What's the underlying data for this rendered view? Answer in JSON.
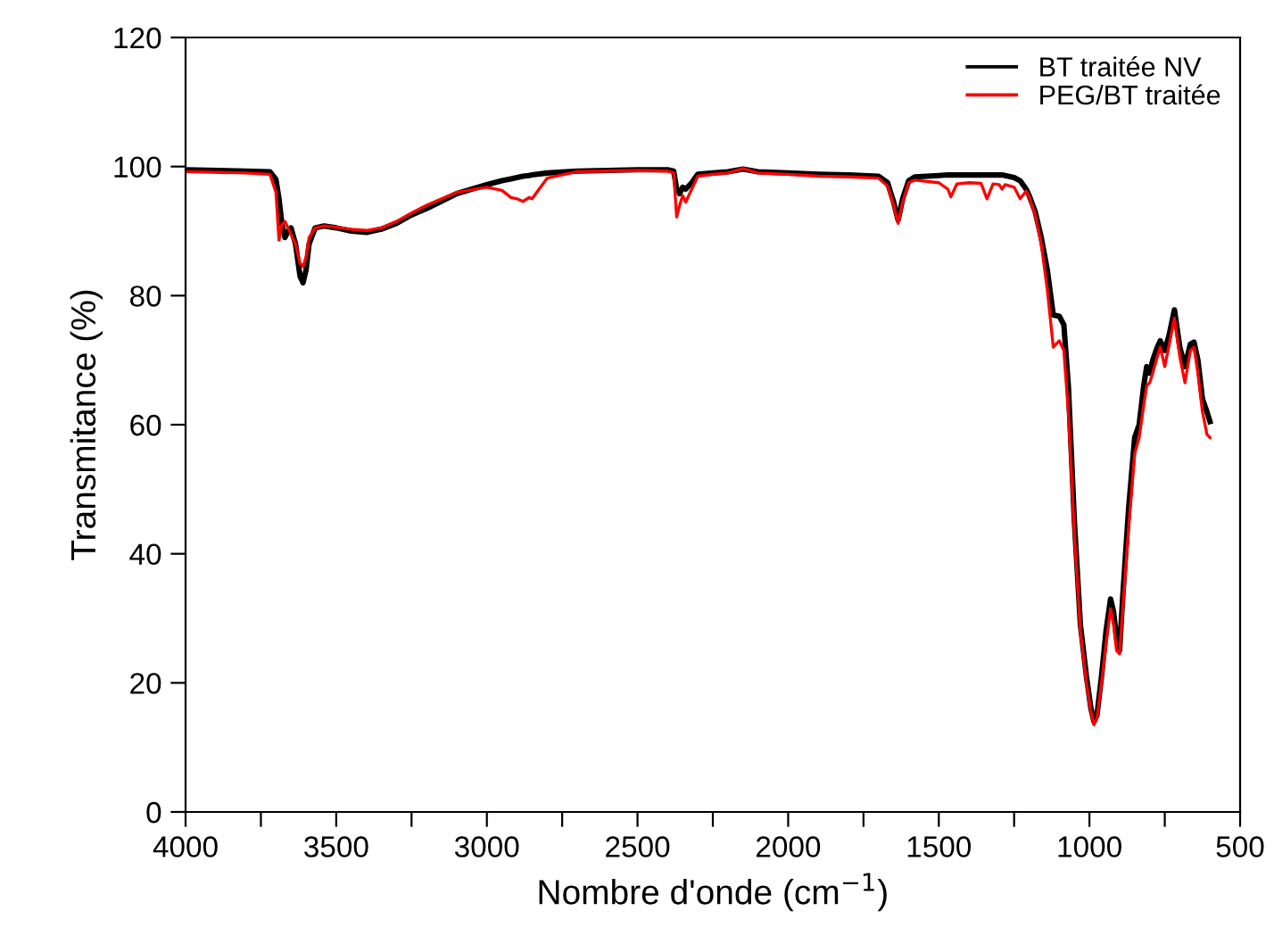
{
  "chart_data": {
    "type": "line",
    "xlabel": "Nombre d'onde (cm$^{−1}$)",
    "ylabel": "Transmitance (%)",
    "x": [
      4000,
      3800,
      3720,
      3700,
      3690,
      3680,
      3670,
      3660,
      3650,
      3635,
      3620,
      3610,
      3600,
      3590,
      3570,
      3540,
      3500,
      3450,
      3400,
      3350,
      3300,
      3250,
      3200,
      3100,
      3000,
      2950,
      2920,
      2900,
      2880,
      2860,
      2850,
      2800,
      2700,
      2600,
      2500,
      2400,
      2380,
      2370,
      2360,
      2350,
      2340,
      2320,
      2300,
      2250,
      2200,
      2150,
      2100,
      2000,
      1900,
      1800,
      1700,
      1670,
      1650,
      1635,
      1620,
      1600,
      1580,
      1500,
      1470,
      1460,
      1440,
      1400,
      1360,
      1340,
      1320,
      1300,
      1290,
      1280,
      1250,
      1230,
      1210,
      1200,
      1180,
      1160,
      1140,
      1120,
      1100,
      1085,
      1070,
      1050,
      1030,
      1010,
      995,
      985,
      975,
      960,
      945,
      930,
      920,
      910,
      900,
      890,
      870,
      850,
      835,
      820,
      810,
      800,
      790,
      775,
      765,
      750,
      735,
      718,
      700,
      683,
      665,
      653,
      640,
      625,
      610,
      600
    ],
    "series": [
      {
        "name": "BT traitée NV",
        "color": "#000000",
        "values": [
          99.5,
          99.3,
          99.2,
          98,
          95,
          91,
          89,
          90,
          90.5,
          88,
          83,
          82,
          84,
          88,
          90.5,
          90.8,
          90.5,
          90,
          89.8,
          90.3,
          91.2,
          92.5,
          93.5,
          95.8,
          97.2,
          97.8,
          98.1,
          98.3,
          98.5,
          98.6,
          98.7,
          99,
          99.3,
          99.4,
          99.5,
          99.5,
          99.3,
          96.5,
          95.8,
          96.8,
          96.5,
          97.5,
          98.8,
          99,
          99.2,
          99.6,
          99.2,
          99,
          98.8,
          98.7,
          98.5,
          97.5,
          94.5,
          91.7,
          95,
          97.8,
          98.4,
          98.6,
          98.7,
          98.7,
          98.7,
          98.7,
          98.7,
          98.7,
          98.7,
          98.7,
          98.7,
          98.6,
          98.3,
          97.8,
          96.5,
          95.5,
          93,
          89,
          84,
          77,
          76.8,
          75.5,
          66,
          45,
          29,
          21,
          16,
          14,
          15,
          21,
          28,
          33,
          31,
          27,
          25,
          33,
          47,
          58,
          60,
          66,
          69,
          68,
          70,
          72,
          73,
          71.5,
          74,
          77.8,
          72,
          69,
          72.5,
          72.8,
          70,
          64,
          62,
          60.5
        ]
      },
      {
        "name": "PEG/BT traitée",
        "color": "#ff0000",
        "values": [
          99.2,
          99,
          98.8,
          96,
          88.6,
          91,
          91.5,
          90.5,
          89.5,
          88,
          85,
          84.5,
          86,
          89,
          90.5,
          90.8,
          90.6,
          90.3,
          90.1,
          90.5,
          91.5,
          92.8,
          94,
          96,
          96.8,
          96.3,
          95.2,
          95,
          94.6,
          95.2,
          95,
          98.2,
          99.2,
          99.3,
          99.4,
          99.3,
          99,
          92.2,
          94,
          95.5,
          94.5,
          96.5,
          98.5,
          98.8,
          99,
          99.7,
          99,
          98.8,
          98.5,
          98.4,
          98.2,
          97,
          94,
          91.2,
          94.5,
          97.5,
          97.9,
          97.5,
          96.5,
          95.3,
          97.3,
          97.5,
          97.4,
          95,
          97.3,
          97.2,
          96.5,
          97.2,
          96.8,
          95,
          96.2,
          95.3,
          92.5,
          88,
          81,
          72,
          73,
          71.5,
          62,
          43,
          28,
          20,
          15.5,
          13.5,
          14.5,
          20,
          26,
          31.5,
          29,
          25,
          24.5,
          31,
          44,
          55.5,
          58,
          63,
          66,
          66.5,
          68,
          70.5,
          72,
          69,
          72.5,
          76.5,
          70.5,
          66.5,
          71.5,
          72,
          68,
          62,
          58.5,
          58
        ]
      }
    ],
    "xlim": [
      4000,
      500
    ],
    "xticks": [
      4000,
      {
        "value": 3750,
        "label": null
      },
      3500,
      {
        "value": 3250,
        "label": null
      },
      3000,
      {
        "value": 2750,
        "label": null
      },
      2500,
      {
        "value": 2250,
        "label": null
      },
      2000,
      {
        "value": 1750,
        "label": null
      },
      1500,
      {
        "value": 1250,
        "label": null
      },
      1000,
      {
        "value": 750,
        "label": null
      },
      500
    ],
    "ylim": [
      0,
      120
    ],
    "yticks": [
      0,
      20,
      40,
      60,
      80,
      100,
      120
    ],
    "legend": "top right",
    "grid": false,
    "marker": "none",
    "line_style": "solid"
  }
}
